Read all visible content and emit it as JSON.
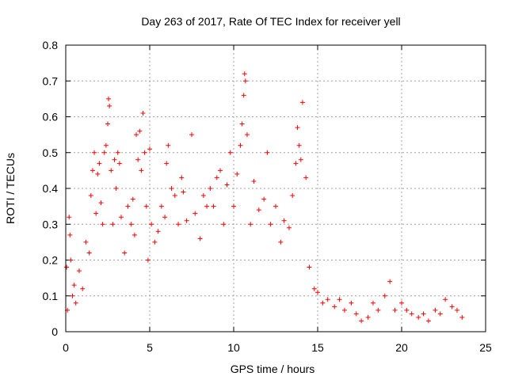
{
  "chart_data": {
    "type": "scatter",
    "title": "Day 263 of 2017, Rate Of TEC Index for receiver yell",
    "xlabel": "GPS time / hours",
    "ylabel": "ROTI / TECUs",
    "xlim": [
      0,
      25
    ],
    "ylim": [
      0,
      0.8
    ],
    "xticks": [
      "0",
      "5",
      "10",
      "15",
      "20",
      "25"
    ],
    "yticks": [
      "0",
      "0.1",
      "0.2",
      "0.3",
      "0.4",
      "0.5",
      "0.6",
      "0.7",
      "0.8"
    ],
    "grid": true,
    "marker": "+",
    "color": "#ff0000",
    "series": [
      {
        "points": [
          [
            0.05,
            0.18
          ],
          [
            0.1,
            0.06
          ],
          [
            0.2,
            0.32
          ],
          [
            0.25,
            0.27
          ],
          [
            0.3,
            0.2
          ],
          [
            0.4,
            0.1
          ],
          [
            0.5,
            0.13
          ],
          [
            0.6,
            0.08
          ],
          [
            0.8,
            0.17
          ],
          [
            1.0,
            0.12
          ],
          [
            1.2,
            0.25
          ],
          [
            1.4,
            0.22
          ],
          [
            1.5,
            0.38
          ],
          [
            1.6,
            0.45
          ],
          [
            1.7,
            0.5
          ],
          [
            1.8,
            0.33
          ],
          [
            1.9,
            0.44
          ],
          [
            2.0,
            0.47
          ],
          [
            2.1,
            0.36
          ],
          [
            2.2,
            0.3
          ],
          [
            2.3,
            0.5
          ],
          [
            2.4,
            0.52
          ],
          [
            2.5,
            0.58
          ],
          [
            2.55,
            0.65
          ],
          [
            2.6,
            0.63
          ],
          [
            2.7,
            0.45
          ],
          [
            2.8,
            0.3
          ],
          [
            2.9,
            0.48
          ],
          [
            3.0,
            0.4
          ],
          [
            3.1,
            0.5
          ],
          [
            3.2,
            0.47
          ],
          [
            3.3,
            0.32
          ],
          [
            3.5,
            0.22
          ],
          [
            3.7,
            0.35
          ],
          [
            3.9,
            0.3
          ],
          [
            4.0,
            0.37
          ],
          [
            4.1,
            0.27
          ],
          [
            4.2,
            0.55
          ],
          [
            4.3,
            0.48
          ],
          [
            4.4,
            0.56
          ],
          [
            4.5,
            0.45
          ],
          [
            4.6,
            0.61
          ],
          [
            4.7,
            0.5
          ],
          [
            4.8,
            0.35
          ],
          [
            4.9,
            0.2
          ],
          [
            5.0,
            0.51
          ],
          [
            5.1,
            0.3
          ],
          [
            5.3,
            0.25
          ],
          [
            5.5,
            0.28
          ],
          [
            5.7,
            0.35
          ],
          [
            5.9,
            0.32
          ],
          [
            6.0,
            0.47
          ],
          [
            6.1,
            0.52
          ],
          [
            6.3,
            0.4
          ],
          [
            6.5,
            0.38
          ],
          [
            6.7,
            0.3
          ],
          [
            6.9,
            0.43
          ],
          [
            7.0,
            0.39
          ],
          [
            7.2,
            0.31
          ],
          [
            7.5,
            0.55
          ],
          [
            7.7,
            0.33
          ],
          [
            8.0,
            0.26
          ],
          [
            8.2,
            0.38
          ],
          [
            8.4,
            0.35
          ],
          [
            8.6,
            0.4
          ],
          [
            8.8,
            0.35
          ],
          [
            9.0,
            0.43
          ],
          [
            9.2,
            0.45
          ],
          [
            9.4,
            0.3
          ],
          [
            9.6,
            0.41
          ],
          [
            9.8,
            0.5
          ],
          [
            10.0,
            0.35
          ],
          [
            10.2,
            0.44
          ],
          [
            10.4,
            0.52
          ],
          [
            10.5,
            0.58
          ],
          [
            10.6,
            0.66
          ],
          [
            10.65,
            0.72
          ],
          [
            10.7,
            0.7
          ],
          [
            10.8,
            0.55
          ],
          [
            11.0,
            0.3
          ],
          [
            11.2,
            0.42
          ],
          [
            11.5,
            0.34
          ],
          [
            11.8,
            0.37
          ],
          [
            12.0,
            0.5
          ],
          [
            12.2,
            0.3
          ],
          [
            12.5,
            0.35
          ],
          [
            12.8,
            0.25
          ],
          [
            13.0,
            0.31
          ],
          [
            13.3,
            0.29
          ],
          [
            13.5,
            0.38
          ],
          [
            13.7,
            0.47
          ],
          [
            13.8,
            0.57
          ],
          [
            13.9,
            0.52
          ],
          [
            14.0,
            0.48
          ],
          [
            14.1,
            0.64
          ],
          [
            14.3,
            0.43
          ],
          [
            14.5,
            0.18
          ],
          [
            14.8,
            0.12
          ],
          [
            15.0,
            0.11
          ],
          [
            15.3,
            0.08
          ],
          [
            15.6,
            0.09
          ],
          [
            16.0,
            0.07
          ],
          [
            16.3,
            0.09
          ],
          [
            16.6,
            0.06
          ],
          [
            17.0,
            0.08
          ],
          [
            17.3,
            0.05
          ],
          [
            17.6,
            0.03
          ],
          [
            18.0,
            0.04
          ],
          [
            18.3,
            0.08
          ],
          [
            18.6,
            0.06
          ],
          [
            19.0,
            0.1
          ],
          [
            19.3,
            0.14
          ],
          [
            19.6,
            0.06
          ],
          [
            20.0,
            0.08
          ],
          [
            20.3,
            0.06
          ],
          [
            20.6,
            0.05
          ],
          [
            21.0,
            0.04
          ],
          [
            21.3,
            0.05
          ],
          [
            21.6,
            0.03
          ],
          [
            22.0,
            0.06
          ],
          [
            22.3,
            0.05
          ],
          [
            22.6,
            0.09
          ],
          [
            23.0,
            0.07
          ],
          [
            23.3,
            0.06
          ],
          [
            23.6,
            0.04
          ]
        ]
      }
    ]
  }
}
